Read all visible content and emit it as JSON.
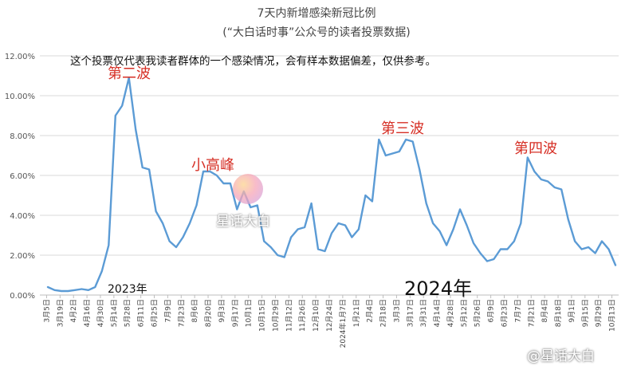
{
  "chart_data": {
    "type": "line",
    "title": "7天内新增感染新冠比例",
    "subtitle": "(“大白话时事”公众号的读者投票数据)",
    "note": "这个投票仅代表我读者群体的一个感染情况，会有样本数据偏差，仅供参考。",
    "annotations": [
      "第二波",
      "小高峰",
      "第三波",
      "第四波"
    ],
    "year_labels": [
      "2023年",
      "2024年"
    ],
    "watermark": "星话大白",
    "watermark_bottom": "@星话大白",
    "ylim": [
      0,
      12
    ],
    "yticks": [
      "0.00%",
      "2.00%",
      "4.00%",
      "6.00%",
      "8.00%",
      "10.00%",
      "12.00%"
    ],
    "x_tick_labels": [
      "3月5日",
      "3月19日",
      "4月2日",
      "4月16日",
      "4月30日",
      "5月14日",
      "5月28日",
      "6月11日",
      "6月25日",
      "7月9日",
      "7月23日",
      "8月6日",
      "8月20日",
      "9月3日",
      "9月17日",
      "10月1日",
      "10月15日",
      "10月29日",
      "11月12日",
      "11月26日",
      "12月10日",
      "12月24日",
      "2024年1月7日",
      "1月21日",
      "2月4日",
      "2月18日",
      "3月3日",
      "3月17日",
      "3月31日",
      "4月14日",
      "4月28日",
      "5月12日",
      "5月26日",
      "6月9日",
      "6月23日",
      "7月7日",
      "7月21日",
      "8月4日",
      "8月18日",
      "9月1日",
      "9月15日",
      "9月29日",
      "10月13日"
    ],
    "series": [
      {
        "color": "#5b9bd5",
        "values": [
          0.4,
          0.25,
          0.2,
          0.2,
          0.25,
          0.3,
          0.25,
          0.4,
          1.2,
          2.5,
          9.0,
          9.5,
          10.9,
          8.3,
          6.4,
          6.3,
          4.2,
          3.6,
          2.7,
          2.4,
          2.9,
          3.6,
          4.5,
          6.2,
          6.2,
          6.0,
          5.6,
          5.6,
          4.3,
          5.2,
          4.4,
          4.5,
          2.7,
          2.4,
          2.0,
          1.9,
          2.9,
          3.3,
          3.4,
          4.6,
          2.3,
          2.2,
          3.1,
          3.6,
          3.5,
          2.9,
          3.3,
          5.0,
          4.7,
          7.8,
          7.0,
          7.1,
          7.2,
          7.8,
          7.7,
          6.3,
          4.6,
          3.6,
          3.2,
          2.5,
          3.3,
          4.3,
          3.5,
          2.6,
          2.1,
          1.7,
          1.8,
          2.3,
          2.3,
          2.7,
          3.6,
          6.9,
          6.2,
          5.8,
          5.7,
          5.4,
          5.3,
          3.8,
          2.7,
          2.3,
          2.4,
          2.1,
          2.7,
          2.3,
          1.5
        ]
      }
    ]
  }
}
